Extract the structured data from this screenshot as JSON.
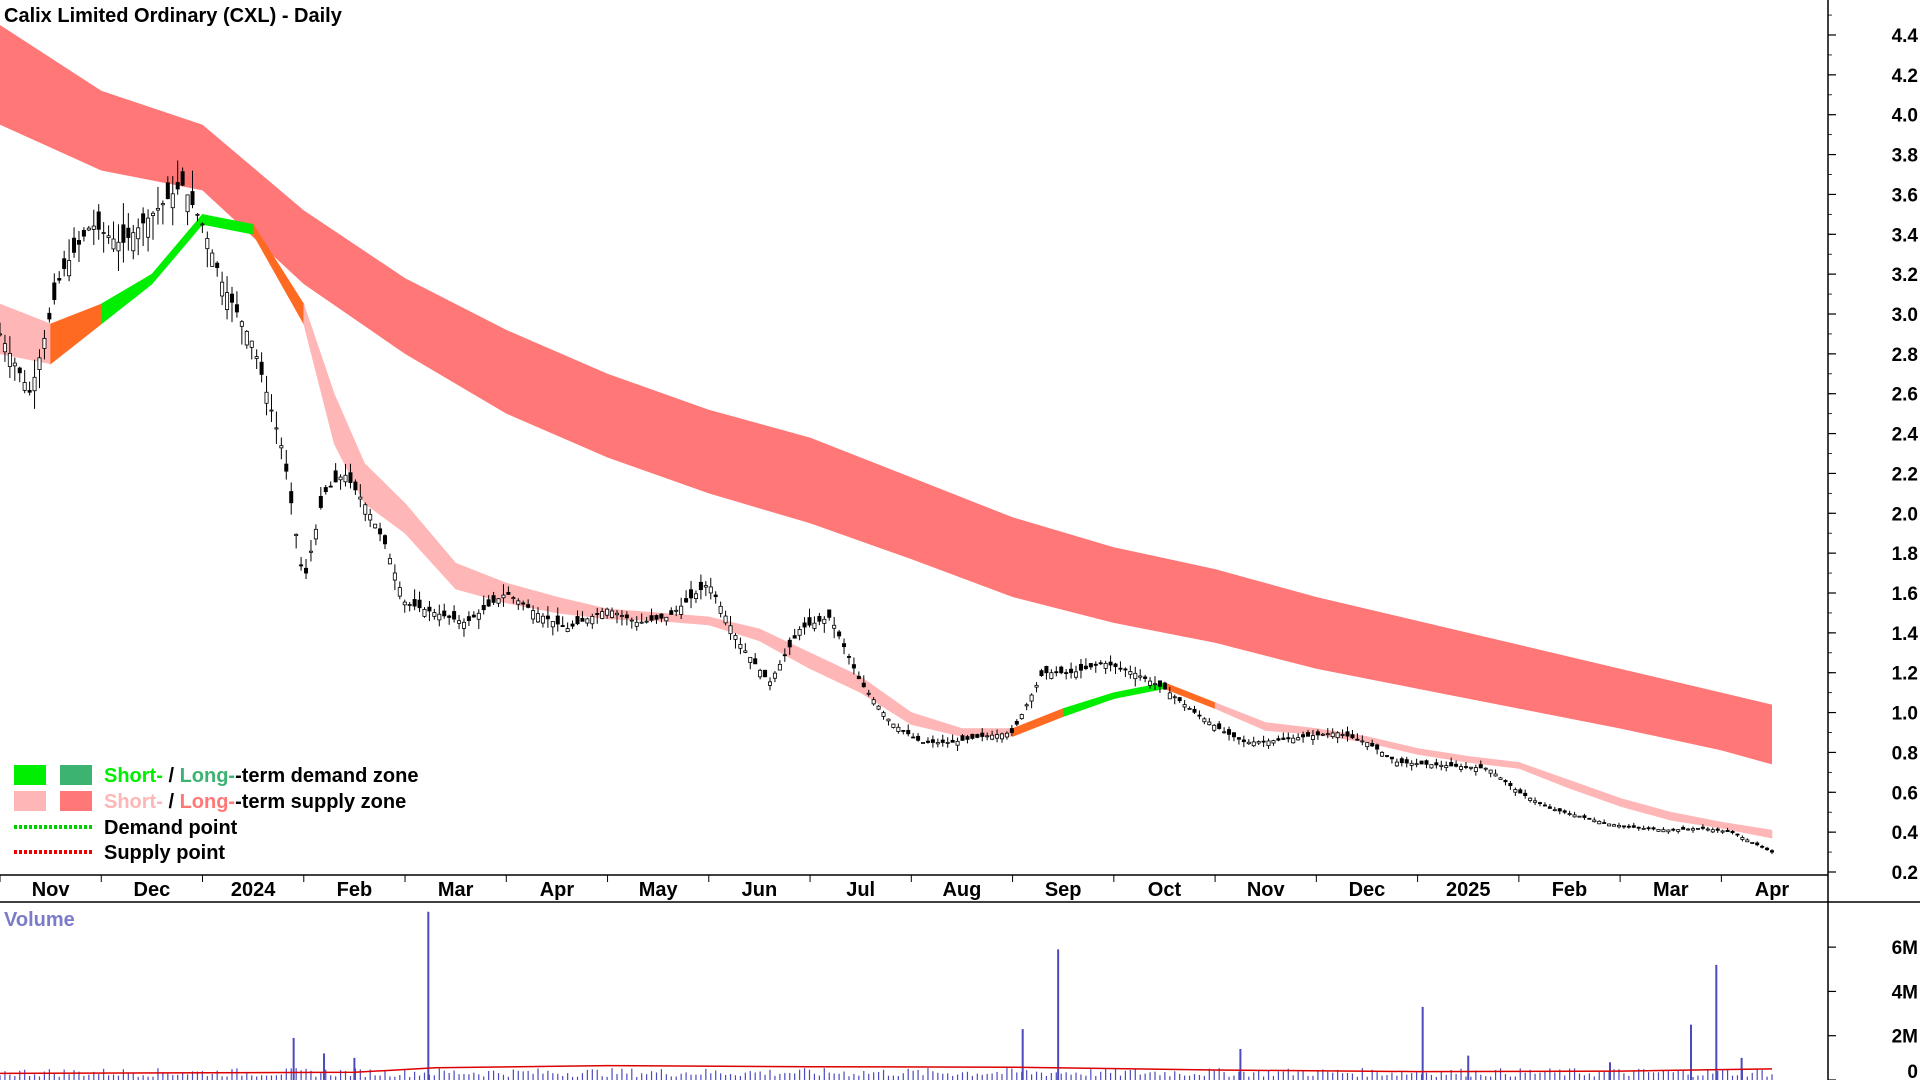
{
  "chart_data": [
    {
      "type": "candlestick",
      "title": "Calix Limited Ordinary (CXL) - Daily",
      "y_axis_side": "right",
      "ylim": [
        0.2,
        4.5
      ],
      "yticks": [
        0.2,
        0.4,
        0.6,
        0.8,
        1.0,
        1.2,
        1.4,
        1.6,
        1.8,
        2.0,
        2.2,
        2.4,
        2.6,
        2.8,
        3.0,
        3.2,
        3.4,
        3.6,
        3.8,
        4.0,
        4.2,
        4.4
      ],
      "ytick_labels": [
        "0.2",
        "0.4",
        "0.6",
        "0.8",
        "1.0",
        "1.2",
        "1.4",
        "1.6",
        "1.8",
        "2.0",
        "2.2",
        "2.4",
        "2.6",
        "2.8",
        "3.0",
        "3.2",
        "3.4",
        "3.6",
        "3.8",
        "4.0",
        "4.2",
        "4.4"
      ],
      "x_labels": [
        "Nov",
        "Dec",
        "2024",
        "Feb",
        "Mar",
        "Apr",
        "May",
        "Jun",
        "Jul",
        "Aug",
        "Sep",
        "Oct",
        "Nov",
        "Dec",
        "2025",
        "Feb",
        "Mar",
        "Apr"
      ],
      "x_label_positions": [
        0.5,
        1.5,
        2.5,
        3.5,
        4.5,
        5.5,
        6.5,
        7.5,
        8.5,
        9.5,
        10.5,
        11.5,
        12.5,
        13.5,
        14.5,
        15.5,
        16.5,
        17.5
      ],
      "x_range": [
        0,
        17.5
      ],
      "price": {
        "x": [
          0,
          0.3,
          0.6,
          0.9,
          1.2,
          1.5,
          1.8,
          2.0,
          2.2,
          2.5,
          2.8,
          3.0,
          3.2,
          3.4,
          3.6,
          3.8,
          4.0,
          4.3,
          4.6,
          5.0,
          5.3,
          5.6,
          6.0,
          6.3,
          6.6,
          7.0,
          7.3,
          7.6,
          7.9,
          8.2,
          8.5,
          8.8,
          9.1,
          9.4,
          9.7,
          10.0,
          10.3,
          10.6,
          10.9,
          11.2,
          11.5,
          11.8,
          12.1,
          12.3,
          12.6,
          12.9,
          13.2,
          13.5,
          13.8,
          14.1,
          14.4,
          14.7,
          15.0,
          15.3,
          15.6,
          15.9,
          16.2,
          16.5,
          16.8,
          17.1,
          17.3,
          17.5
        ],
        "close": [
          2.9,
          2.6,
          3.2,
          3.45,
          3.35,
          3.5,
          3.65,
          3.45,
          3.15,
          2.85,
          2.3,
          1.65,
          2.1,
          2.2,
          2.05,
          1.85,
          1.55,
          1.5,
          1.45,
          1.6,
          1.5,
          1.42,
          1.52,
          1.45,
          1.48,
          1.65,
          1.35,
          1.15,
          1.42,
          1.48,
          1.15,
          0.95,
          0.85,
          0.85,
          0.88,
          0.9,
          1.2,
          1.2,
          1.25,
          1.2,
          1.12,
          1.0,
          0.9,
          0.85,
          0.86,
          0.88,
          0.9,
          0.85,
          0.75,
          0.74,
          0.73,
          0.72,
          0.6,
          0.52,
          0.48,
          0.44,
          0.42,
          0.41,
          0.42,
          0.4,
          0.35,
          0.3
        ]
      },
      "short_term_band": {
        "x": [
          0,
          0.5,
          1.0,
          1.5,
          2.0,
          2.5,
          3.0,
          3.3,
          3.6,
          4.0,
          4.5,
          5.0,
          5.5,
          6.0,
          6.5,
          7.0,
          7.5,
          8.0,
          8.5,
          9.0,
          9.5,
          10.0,
          10.5,
          11.0,
          11.5,
          12.0,
          12.5,
          13.0,
          13.5,
          14.0,
          14.5,
          15.0,
          15.5,
          16.0,
          16.5,
          17.0,
          17.5
        ],
        "upper": [
          3.05,
          2.95,
          3.05,
          3.2,
          3.5,
          3.45,
          3.05,
          2.6,
          2.25,
          2.05,
          1.75,
          1.65,
          1.58,
          1.52,
          1.5,
          1.48,
          1.42,
          1.3,
          1.18,
          1.0,
          0.92,
          0.92,
          1.02,
          1.1,
          1.15,
          1.05,
          0.95,
          0.92,
          0.88,
          0.82,
          0.78,
          0.75,
          0.66,
          0.57,
          0.5,
          0.45,
          0.41
        ],
        "lower": [
          2.8,
          2.75,
          2.95,
          3.15,
          3.45,
          3.4,
          2.95,
          2.35,
          2.05,
          1.9,
          1.62,
          1.55,
          1.5,
          1.47,
          1.46,
          1.44,
          1.36,
          1.22,
          1.1,
          0.94,
          0.88,
          0.88,
          0.98,
          1.07,
          1.12,
          1.02,
          0.91,
          0.89,
          0.85,
          0.79,
          0.75,
          0.72,
          0.62,
          0.53,
          0.46,
          0.42,
          0.37
        ],
        "segment_states": [
          "supply",
          "demand",
          "demand",
          "demand",
          "demand",
          "supply",
          "supply",
          "supply",
          "supply",
          "supply",
          "supply",
          "supply",
          "supply",
          "supply",
          "supply",
          "supply",
          "supply",
          "supply",
          "supply",
          "supply",
          "supply",
          "demand",
          "demand",
          "demand",
          "supply",
          "supply",
          "supply",
          "supply",
          "supply",
          "supply",
          "supply",
          "supply",
          "supply",
          "supply",
          "supply",
          "supply"
        ]
      },
      "long_term_band": {
        "x": [
          0,
          1.0,
          2.0,
          3.0,
          4.0,
          5.0,
          6.0,
          7.0,
          8.0,
          9.0,
          10.0,
          11.0,
          12.0,
          13.0,
          14.0,
          15.0,
          16.0,
          17.0,
          17.5
        ],
        "upper": [
          4.45,
          4.12,
          3.95,
          3.52,
          3.18,
          2.92,
          2.7,
          2.52,
          2.38,
          2.18,
          1.98,
          1.83,
          1.72,
          1.58,
          1.46,
          1.34,
          1.22,
          1.1,
          1.04
        ],
        "lower": [
          3.95,
          3.72,
          3.62,
          3.15,
          2.8,
          2.5,
          2.28,
          2.1,
          1.95,
          1.77,
          1.58,
          1.45,
          1.35,
          1.22,
          1.12,
          1.02,
          0.92,
          0.81,
          0.74
        ],
        "state": "supply"
      },
      "legend": [
        {
          "prefix": "Short-",
          "sep": " / ",
          "long": "Long-",
          "suffix": "-term demand zone",
          "colors": [
            "#00ee00",
            "#3cb371"
          ]
        },
        {
          "prefix": "Short-",
          "sep": " / ",
          "long": "Long-",
          "suffix": "-term supply zone",
          "colors": [
            "#ffb6b6",
            "#ff7777"
          ]
        },
        {
          "label": "Demand point",
          "color": "#00cc00"
        },
        {
          "label": "Supply point",
          "color": "#ee0000"
        }
      ],
      "colors": {
        "short_demand": "#00ee00",
        "short_supply": "#ffb6b6",
        "transition": "#ff6a22",
        "long_supply": "#ff7777",
        "long_demand": "#3cb371",
        "demand_point": "#00cc00",
        "supply_point": "#ee0000",
        "candles": "#000000"
      },
      "grid": false,
      "legend_position": "bottom-left"
    },
    {
      "type": "bar",
      "title": "Volume",
      "ylim": [
        0,
        7000000
      ],
      "yticks": [
        0,
        2000000,
        4000000,
        6000000
      ],
      "ytick_labels": [
        "0",
        "2M",
        "4M",
        "6M"
      ],
      "x_range": [
        0,
        17.5
      ],
      "spikes": {
        "x": [
          2.9,
          3.2,
          3.5,
          4.23,
          10.1,
          10.45,
          12.25,
          14.05,
          14.5,
          15.9,
          16.7,
          16.95,
          17.2
        ],
        "values": [
          1900000,
          1200000,
          1000000,
          7600000,
          2300000,
          5900000,
          1400000,
          3300000,
          1100000,
          800000,
          2500000,
          5200000,
          1000000
        ]
      },
      "baseline_volume": 450000,
      "average_line": {
        "x": [
          0,
          3.5,
          4.3,
          6.0,
          8.0,
          10.0,
          12.0,
          14.0,
          16.0,
          17.5
        ],
        "values": [
          300000,
          350000,
          550000,
          650000,
          600000,
          580000,
          450000,
          380000,
          400000,
          500000
        ]
      },
      "colors": {
        "bars": "#4b4bbf",
        "average": "#dd0000",
        "title": "#7b7bc8"
      }
    }
  ]
}
